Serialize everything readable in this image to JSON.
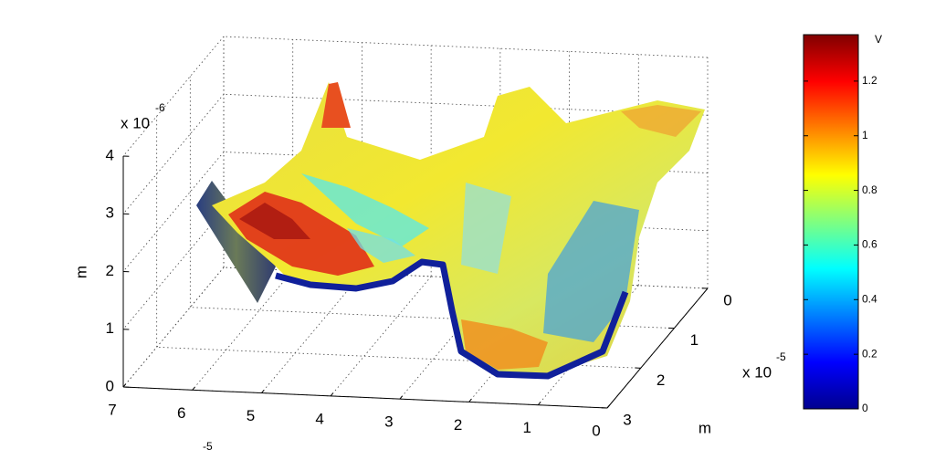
{
  "chart_data": {
    "type": "surface",
    "zlabel": "m",
    "ylabel": "m",
    "zlim": [
      0,
      4
    ],
    "zticks": [
      0,
      1,
      2,
      3,
      4
    ],
    "z_exponent": {
      "base": "x 10",
      "power": "-6"
    },
    "xlim": [
      0,
      7
    ],
    "xticks": [
      0,
      1,
      2,
      3,
      4,
      5,
      6,
      7
    ],
    "x_exponent": {
      "power": "-5"
    },
    "ylim": [
      0,
      3
    ],
    "yticks": [
      0,
      1,
      2,
      3
    ],
    "y_exponent": {
      "base": "x 10",
      "power": "-5"
    },
    "colorbar": {
      "label": "V",
      "clim": [
        0,
        1.37
      ],
      "ticks": [
        0,
        0.2,
        0.4,
        0.6,
        0.8,
        1,
        1.2
      ],
      "colormap": "jet"
    },
    "grid": true
  }
}
